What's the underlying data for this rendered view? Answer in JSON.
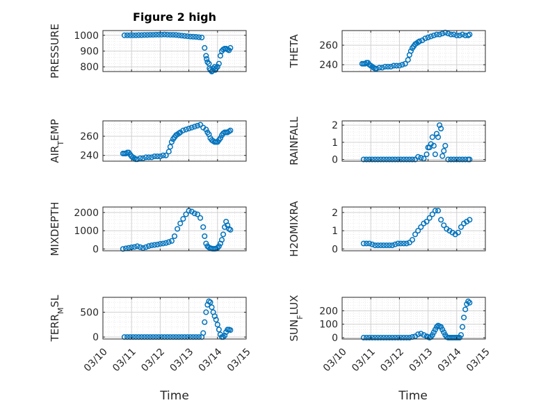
{
  "title": "Figure 2 high",
  "x_axis": {
    "label": "Time",
    "ticks": [
      "03/10",
      "03/11",
      "03/12",
      "03/13",
      "03/14",
      "03/15"
    ]
  },
  "colors": {
    "marker": "#0072BD",
    "axes": "#262626",
    "grid": "#dcdcdc",
    "background": "#ffffff"
  },
  "chart_data": [
    {
      "type": "scatter",
      "name": "PRESSURE",
      "ylabel": "PRESSURE",
      "ylim": [
        770,
        1030
      ],
      "yticks": [
        800,
        900,
        1000
      ],
      "grid": true,
      "x": [
        0.75,
        0.85,
        0.95,
        1.05,
        1.15,
        1.25,
        1.35,
        1.45,
        1.55,
        1.65,
        1.75,
        1.85,
        1.95,
        2.05,
        2.15,
        2.25,
        2.35,
        2.45,
        2.55,
        2.65,
        2.75,
        2.85,
        2.95,
        3.05,
        3.15,
        3.25,
        3.35,
        3.45,
        3.55,
        3.6,
        3.62,
        3.65,
        3.7,
        3.72,
        3.75,
        3.8,
        3.82,
        3.85,
        3.9,
        3.92,
        3.95,
        4.0,
        4.05,
        4.1,
        4.15,
        4.2,
        4.25,
        4.3,
        4.35,
        4.4,
        4.45
      ],
      "y": [
        1000,
        1000,
        1000,
        1000,
        1000,
        1001,
        1001,
        1002,
        1002,
        1003,
        1003,
        1004,
        1004,
        1004,
        1005,
        1004,
        1003,
        1003,
        1002,
        1000,
        998,
        996,
        994,
        992,
        991,
        990,
        988,
        986,
        920,
        870,
        850,
        830,
        820,
        790,
        780,
        770,
        775,
        790,
        800,
        780,
        790,
        800,
        820,
        870,
        900,
        910,
        915,
        915,
        910,
        905,
        920
      ]
    },
    {
      "type": "scatter",
      "name": "THETA",
      "ylabel": "THETA",
      "ylim": [
        233,
        275
      ],
      "yticks": [
        240,
        260
      ],
      "grid": true,
      "x": [
        0.7,
        0.75,
        0.8,
        0.85,
        0.9,
        0.95,
        1.0,
        1.05,
        1.1,
        1.15,
        1.2,
        1.3,
        1.4,
        1.5,
        1.6,
        1.7,
        1.8,
        1.9,
        2.0,
        2.1,
        2.2,
        2.3,
        2.35,
        2.4,
        2.45,
        2.5,
        2.55,
        2.6,
        2.65,
        2.7,
        2.8,
        2.9,
        3.0,
        3.1,
        3.2,
        3.3,
        3.4,
        3.5,
        3.6,
        3.7,
        3.8,
        3.9,
        4.0,
        4.1,
        4.2,
        4.3,
        4.4,
        4.45
      ],
      "y": [
        241,
        241,
        241,
        242,
        242,
        240,
        239,
        238,
        237,
        236,
        236,
        237,
        237,
        238,
        238,
        238,
        239,
        239,
        239,
        240,
        241,
        245,
        250,
        254,
        257,
        259,
        261,
        262,
        263,
        264,
        265,
        267,
        268,
        269,
        270,
        271,
        271,
        272,
        273,
        272,
        271,
        271,
        270,
        270,
        271,
        270,
        270,
        271
      ]
    },
    {
      "type": "scatter",
      "name": "AIR_TEMP",
      "ylabel": "AIR",
      "ylim": [
        234,
        276
      ],
      "yticks": [
        240,
        260
      ],
      "grid": true,
      "x": [
        0.7,
        0.75,
        0.8,
        0.85,
        0.9,
        0.95,
        1.0,
        1.05,
        1.1,
        1.15,
        1.2,
        1.3,
        1.4,
        1.5,
        1.6,
        1.7,
        1.8,
        1.9,
        2.0,
        2.1,
        2.2,
        2.3,
        2.35,
        2.4,
        2.45,
        2.5,
        2.55,
        2.6,
        2.65,
        2.7,
        2.8,
        2.9,
        3.0,
        3.1,
        3.2,
        3.3,
        3.4,
        3.5,
        3.6,
        3.65,
        3.7,
        3.75,
        3.8,
        3.85,
        3.9,
        3.95,
        4.0,
        4.05,
        4.1,
        4.15,
        4.2,
        4.25,
        4.3,
        4.35,
        4.4,
        4.45
      ],
      "y": [
        242,
        242,
        242,
        243,
        243,
        241,
        239,
        238,
        237,
        236,
        236,
        237,
        237,
        238,
        238,
        238,
        239,
        239,
        239,
        240,
        240,
        244,
        249,
        254,
        257,
        259,
        261,
        262,
        263,
        264,
        266,
        267,
        268,
        269,
        270,
        271,
        272,
        269,
        267,
        264,
        262,
        258,
        256,
        255,
        254,
        254,
        254,
        256,
        258,
        261,
        263,
        264,
        264,
        264,
        265,
        266
      ]
    },
    {
      "type": "scatter",
      "name": "RAINFALL",
      "ylabel": "RAINFALL",
      "ylim": [
        -0.1,
        2.25
      ],
      "yticks": [
        0,
        1,
        2
      ],
      "grid": true,
      "x": [
        0.75,
        0.85,
        0.95,
        1.05,
        1.15,
        1.25,
        1.35,
        1.45,
        1.55,
        1.65,
        1.75,
        1.85,
        1.95,
        2.05,
        2.15,
        2.25,
        2.35,
        2.45,
        2.55,
        2.65,
        2.75,
        2.85,
        2.95,
        3.0,
        3.05,
        3.1,
        3.15,
        3.2,
        3.25,
        3.3,
        3.35,
        3.4,
        3.45,
        3.5,
        3.55,
        3.6,
        3.7,
        3.8,
        3.9,
        4.0,
        4.1,
        4.2,
        4.3,
        4.4,
        4.45
      ],
      "y": [
        0,
        0,
        0,
        0,
        0,
        0,
        0,
        0,
        0,
        0,
        0,
        0,
        0,
        0,
        0,
        0,
        0,
        0,
        0,
        0.15,
        0.1,
        0.05,
        0.3,
        0.7,
        0.7,
        0.9,
        1.3,
        0.8,
        0.3,
        1.5,
        1.3,
        2.0,
        1.8,
        0.2,
        0.5,
        0.8,
        0,
        0,
        0,
        0,
        0,
        0,
        0,
        0,
        0
      ]
    },
    {
      "type": "scatter",
      "name": "MIXDEPTH",
      "ylabel": "MIXDEPTH",
      "ylim": [
        -100,
        2300
      ],
      "yticks": [
        0,
        1000,
        2000
      ],
      "grid": true,
      "x": [
        0.7,
        0.8,
        0.9,
        1.0,
        1.1,
        1.2,
        1.3,
        1.4,
        1.5,
        1.6,
        1.7,
        1.8,
        1.9,
        2.0,
        2.1,
        2.2,
        2.3,
        2.4,
        2.5,
        2.6,
        2.7,
        2.8,
        2.9,
        3.0,
        3.1,
        3.2,
        3.3,
        3.4,
        3.5,
        3.55,
        3.6,
        3.65,
        3.7,
        3.75,
        3.8,
        3.85,
        3.9,
        3.95,
        4.0,
        4.05,
        4.1,
        4.15,
        4.2,
        4.25,
        4.3,
        4.35,
        4.4,
        4.45
      ],
      "y": [
        0,
        30,
        60,
        90,
        110,
        150,
        100,
        50,
        100,
        160,
        200,
        220,
        240,
        280,
        300,
        330,
        380,
        440,
        700,
        1100,
        1400,
        1650,
        1900,
        2100,
        2050,
        1950,
        1900,
        1700,
        1200,
        700,
        300,
        150,
        80,
        40,
        20,
        10,
        10,
        20,
        60,
        150,
        300,
        500,
        800,
        1200,
        1500,
        1300,
        1100,
        1050
      ]
    },
    {
      "type": "scatter",
      "name": "H2OMIXRA",
      "ylabel": "H2OMIXRA",
      "ylim": [
        -0.1,
        2.3
      ],
      "yticks": [
        0,
        1,
        2
      ],
      "grid": true,
      "x": [
        0.75,
        0.85,
        0.95,
        1.05,
        1.15,
        1.25,
        1.35,
        1.45,
        1.55,
        1.65,
        1.75,
        1.85,
        1.95,
        2.05,
        2.15,
        2.25,
        2.35,
        2.45,
        2.55,
        2.65,
        2.75,
        2.85,
        2.95,
        3.05,
        3.15,
        3.25,
        3.35,
        3.45,
        3.55,
        3.65,
        3.75,
        3.85,
        3.95,
        4.05,
        4.15,
        4.25,
        4.35,
        4.45
      ],
      "y": [
        0.3,
        0.3,
        0.3,
        0.25,
        0.2,
        0.2,
        0.2,
        0.2,
        0.2,
        0.2,
        0.2,
        0.25,
        0.3,
        0.3,
        0.3,
        0.3,
        0.35,
        0.5,
        0.8,
        1.0,
        1.2,
        1.4,
        1.5,
        1.7,
        1.9,
        2.1,
        2.1,
        1.6,
        1.3,
        1.1,
        1.0,
        0.9,
        0.8,
        0.9,
        1.2,
        1.4,
        1.5,
        1.6
      ]
    },
    {
      "type": "scatter",
      "name": "TERR_MSL",
      "ylabel": "TERR",
      "ylim": [
        -40,
        800
      ],
      "yticks": [
        0,
        500
      ],
      "grid": true,
      "x": [
        0.75,
        0.85,
        0.95,
        1.05,
        1.15,
        1.25,
        1.35,
        1.45,
        1.55,
        1.65,
        1.75,
        1.85,
        1.95,
        2.05,
        2.15,
        2.25,
        2.35,
        2.45,
        2.55,
        2.65,
        2.75,
        2.85,
        2.95,
        3.05,
        3.15,
        3.25,
        3.35,
        3.45,
        3.5,
        3.55,
        3.6,
        3.65,
        3.7,
        3.75,
        3.8,
        3.85,
        3.9,
        3.95,
        4.0,
        4.05,
        4.1,
        4.15,
        4.2,
        4.25,
        4.3,
        4.35,
        4.4,
        4.45
      ],
      "y": [
        0,
        0,
        0,
        0,
        0,
        0,
        0,
        0,
        0,
        0,
        0,
        0,
        0,
        0,
        0,
        0,
        0,
        0,
        0,
        0,
        0,
        0,
        0,
        0,
        0,
        0,
        0,
        0,
        80,
        300,
        500,
        650,
        720,
        700,
        600,
        500,
        420,
        350,
        250,
        150,
        50,
        0,
        0,
        30,
        100,
        150,
        150,
        140
      ]
    },
    {
      "type": "scatter",
      "name": "SUN_FLUX",
      "ylabel": "SUN",
      "ylim": [
        -10,
        300
      ],
      "yticks": [
        0,
        100,
        200
      ],
      "grid": true,
      "x": [
        0.75,
        0.85,
        0.95,
        1.05,
        1.15,
        1.25,
        1.35,
        1.45,
        1.55,
        1.65,
        1.75,
        1.85,
        1.95,
        2.05,
        2.15,
        2.25,
        2.35,
        2.45,
        2.55,
        2.65,
        2.75,
        2.85,
        2.95,
        3.0,
        3.05,
        3.1,
        3.15,
        3.2,
        3.25,
        3.3,
        3.35,
        3.4,
        3.45,
        3.5,
        3.55,
        3.6,
        3.65,
        3.7,
        3.75,
        3.8,
        3.85,
        3.9,
        3.95,
        4.0,
        4.05,
        4.1,
        4.15,
        4.2,
        4.25,
        4.3,
        4.35,
        4.4,
        4.45
      ],
      "y": [
        0,
        0,
        0,
        0,
        0,
        0,
        0,
        0,
        0,
        0,
        0,
        0,
        0,
        0,
        0,
        0,
        0,
        5,
        10,
        25,
        30,
        20,
        10,
        5,
        0,
        5,
        20,
        40,
        60,
        80,
        90,
        85,
        80,
        60,
        40,
        20,
        5,
        0,
        0,
        0,
        0,
        0,
        0,
        0,
        0,
        0,
        20,
        80,
        150,
        210,
        250,
        270,
        260
      ]
    }
  ],
  "subscripts": {
    "AIR_TEMP": {
      "base": "AIR",
      "sub": "T",
      "rest": "EMP"
    },
    "TERR_MSL": {
      "base": "TERR",
      "sub": "M",
      "rest": "SL"
    },
    "SUN_FLUX": {
      "base": "SUN",
      "sub": "F",
      "rest": "LUX"
    }
  }
}
